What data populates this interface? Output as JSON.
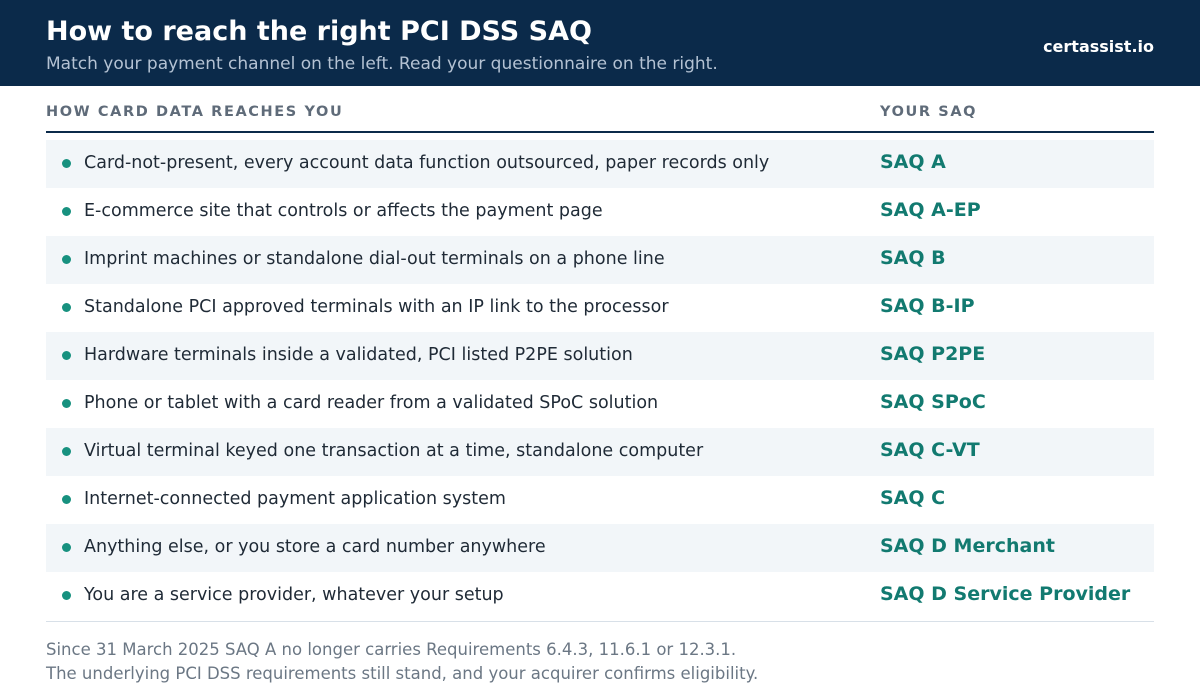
{
  "header": {
    "title": "How to reach the right PCI DSS SAQ",
    "subtitle": "Match your payment channel on the left. Read your questionnaire on the right.",
    "brand": "certassist.io"
  },
  "columns": {
    "left": "HOW CARD DATA REACHES YOU",
    "right": "YOUR SAQ"
  },
  "rows": [
    {
      "channel": "Card-not-present, every account data function outsourced, paper records only",
      "saq": "SAQ A"
    },
    {
      "channel": "E-commerce site that controls or affects the payment page",
      "saq": "SAQ A-EP"
    },
    {
      "channel": "Imprint machines or standalone dial-out terminals on a phone line",
      "saq": "SAQ B"
    },
    {
      "channel": "Standalone PCI approved terminals with an IP link to the processor",
      "saq": "SAQ B-IP"
    },
    {
      "channel": "Hardware terminals inside a validated, PCI listed P2PE solution",
      "saq": "SAQ P2PE"
    },
    {
      "channel": "Phone or tablet with a card reader from a validated SPoC solution",
      "saq": "SAQ SPoC"
    },
    {
      "channel": "Virtual terminal keyed one transaction at a time, standalone computer",
      "saq": "SAQ C-VT"
    },
    {
      "channel": "Internet-connected payment application system",
      "saq": "SAQ C"
    },
    {
      "channel": "Anything else, or you store a card number anywhere",
      "saq": "SAQ D Merchant"
    },
    {
      "channel": "You are a service provider, whatever your setup",
      "saq": "SAQ D Service Provider"
    }
  ],
  "footer": {
    "line1": "Since 31 March 2025 SAQ A no longer carries Requirements 6.4.3, 11.6.1 or 12.3.1.",
    "line2": "The underlying PCI DSS requirements still stand, and your acquirer confirms eligibility."
  },
  "colors": {
    "header_bg": "#0b2a4a",
    "accent": "#127a70",
    "bullet": "#17917f",
    "row_shade": "#f2f6f9"
  }
}
